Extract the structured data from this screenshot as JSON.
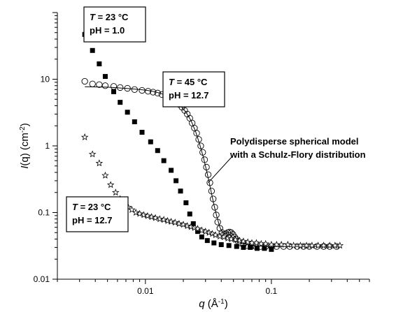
{
  "chart_data": {
    "type": "scatter",
    "scale": {
      "x": "log",
      "y": "log"
    },
    "xlim": [
      0.002,
      0.6
    ],
    "ylim": [
      0.01,
      100
    ],
    "x_ticks": [
      {
        "value": 0.01,
        "label": "0.01"
      },
      {
        "value": 0.1,
        "label": "0.1"
      }
    ],
    "y_ticks": [
      {
        "value": 0.01,
        "label": "0.01"
      },
      {
        "value": 0.1,
        "label": "0.1"
      },
      {
        "value": 1,
        "label": "1"
      },
      {
        "value": 10,
        "label": "10"
      }
    ],
    "xlabel": {
      "var": "q",
      "text": " (Å",
      "sup": "-1",
      "close": ")"
    },
    "ylabel": {
      "var": "I",
      "text": "(q) (cm",
      "sup": "-2",
      "close": ")"
    },
    "series": [
      {
        "marker": "filled-square",
        "points": [
          [
            0.0033,
            47
          ],
          [
            0.0038,
            27
          ],
          [
            0.0043,
            17
          ],
          [
            0.0048,
            11
          ],
          [
            0.0056,
            6.5
          ],
          [
            0.0063,
            4.5
          ],
          [
            0.0072,
            3.2
          ],
          [
            0.0082,
            2.3
          ],
          [
            0.0094,
            1.6
          ],
          [
            0.011,
            1.15
          ],
          [
            0.0125,
            0.85
          ],
          [
            0.014,
            0.6
          ],
          [
            0.016,
            0.43
          ],
          [
            0.0175,
            0.3
          ],
          [
            0.019,
            0.21
          ],
          [
            0.021,
            0.14
          ],
          [
            0.0225,
            0.095
          ],
          [
            0.024,
            0.068
          ],
          [
            0.026,
            0.052
          ],
          [
            0.028,
            0.043
          ],
          [
            0.031,
            0.038
          ],
          [
            0.035,
            0.035
          ],
          [
            0.04,
            0.033
          ],
          [
            0.046,
            0.032
          ],
          [
            0.053,
            0.031
          ],
          [
            0.06,
            0.03
          ],
          [
            0.068,
            0.03
          ],
          [
            0.077,
            0.029
          ],
          [
            0.088,
            0.029
          ],
          [
            0.1,
            0.028
          ]
        ]
      },
      {
        "marker": "open-circle",
        "points": [
          [
            0.0033,
            9.3
          ],
          [
            0.0038,
            8.5
          ],
          [
            0.0043,
            8.3
          ],
          [
            0.0048,
            8.0
          ],
          [
            0.0056,
            7.8
          ],
          [
            0.0063,
            7.5
          ],
          [
            0.0072,
            7.3
          ],
          [
            0.0082,
            7.0
          ],
          [
            0.0094,
            6.8
          ],
          [
            0.0105,
            6.6
          ],
          [
            0.0115,
            6.4
          ],
          [
            0.0125,
            6.2
          ],
          [
            0.0135,
            5.9
          ],
          [
            0.0145,
            5.6
          ],
          [
            0.0155,
            5.3
          ],
          [
            0.0165,
            5.0
          ],
          [
            0.0175,
            4.6
          ],
          [
            0.0185,
            4.2
          ],
          [
            0.0195,
            3.8
          ],
          [
            0.0205,
            3.4
          ],
          [
            0.0215,
            3.0
          ],
          [
            0.0225,
            2.6
          ],
          [
            0.0235,
            2.2
          ],
          [
            0.0245,
            1.85
          ],
          [
            0.0255,
            1.55
          ],
          [
            0.0265,
            1.25
          ],
          [
            0.0275,
            1.0
          ],
          [
            0.0285,
            0.8
          ],
          [
            0.0295,
            0.62
          ],
          [
            0.0305,
            0.48
          ],
          [
            0.0315,
            0.37
          ],
          [
            0.0325,
            0.28
          ],
          [
            0.0335,
            0.21
          ],
          [
            0.0345,
            0.16
          ],
          [
            0.0355,
            0.12
          ],
          [
            0.0365,
            0.092
          ],
          [
            0.0375,
            0.072
          ],
          [
            0.039,
            0.058
          ],
          [
            0.0405,
            0.05
          ],
          [
            0.042,
            0.047
          ],
          [
            0.0435,
            0.048
          ],
          [
            0.045,
            0.05
          ],
          [
            0.0465,
            0.051
          ],
          [
            0.048,
            0.05
          ],
          [
            0.0495,
            0.047
          ],
          [
            0.051,
            0.043
          ],
          [
            0.0525,
            0.04
          ],
          [
            0.0545,
            0.037
          ],
          [
            0.057,
            0.035
          ],
          [
            0.06,
            0.033
          ],
          [
            0.064,
            0.032
          ],
          [
            0.069,
            0.031
          ],
          [
            0.075,
            0.031
          ],
          [
            0.082,
            0.031
          ],
          [
            0.09,
            0.031
          ],
          [
            0.1,
            0.031
          ],
          [
            0.11,
            0.031
          ],
          [
            0.125,
            0.031
          ],
          [
            0.14,
            0.031
          ],
          [
            0.16,
            0.031
          ],
          [
            0.18,
            0.031
          ],
          [
            0.2,
            0.031
          ],
          [
            0.23,
            0.031
          ],
          [
            0.26,
            0.031
          ],
          [
            0.29,
            0.031
          ],
          [
            0.33,
            0.031
          ]
        ]
      },
      {
        "marker": "open-star",
        "points": [
          [
            0.0033,
            1.35
          ],
          [
            0.0038,
            0.75
          ],
          [
            0.0043,
            0.55
          ],
          [
            0.0048,
            0.36
          ],
          [
            0.0053,
            0.26
          ],
          [
            0.0058,
            0.2
          ],
          [
            0.0063,
            0.16
          ],
          [
            0.0068,
            0.135
          ],
          [
            0.0073,
            0.12
          ],
          [
            0.0078,
            0.11
          ],
          [
            0.0084,
            0.1
          ],
          [
            0.009,
            0.096
          ],
          [
            0.0097,
            0.092
          ],
          [
            0.0104,
            0.089
          ],
          [
            0.0112,
            0.086
          ],
          [
            0.012,
            0.083
          ],
          [
            0.013,
            0.08
          ],
          [
            0.014,
            0.078
          ],
          [
            0.015,
            0.075
          ],
          [
            0.016,
            0.073
          ],
          [
            0.0172,
            0.071
          ],
          [
            0.0185,
            0.068
          ],
          [
            0.02,
            0.066
          ],
          [
            0.0215,
            0.063
          ],
          [
            0.023,
            0.061
          ],
          [
            0.0245,
            0.059
          ],
          [
            0.026,
            0.057
          ],
          [
            0.028,
            0.054
          ],
          [
            0.03,
            0.052
          ],
          [
            0.032,
            0.05
          ],
          [
            0.034,
            0.048
          ],
          [
            0.036,
            0.046
          ],
          [
            0.039,
            0.044
          ],
          [
            0.042,
            0.043
          ],
          [
            0.045,
            0.041
          ],
          [
            0.048,
            0.04
          ],
          [
            0.052,
            0.039
          ],
          [
            0.056,
            0.038
          ],
          [
            0.06,
            0.037
          ],
          [
            0.065,
            0.036
          ],
          [
            0.07,
            0.035
          ],
          [
            0.076,
            0.035
          ],
          [
            0.083,
            0.034
          ],
          [
            0.09,
            0.034
          ],
          [
            0.1,
            0.033
          ],
          [
            0.11,
            0.033
          ],
          [
            0.12,
            0.033
          ],
          [
            0.135,
            0.033
          ],
          [
            0.15,
            0.032
          ],
          [
            0.17,
            0.032
          ],
          [
            0.19,
            0.032
          ],
          [
            0.21,
            0.032
          ],
          [
            0.235,
            0.032
          ],
          [
            0.26,
            0.032
          ],
          [
            0.29,
            0.032
          ],
          [
            0.32,
            0.032
          ],
          [
            0.35,
            0.032
          ]
        ]
      }
    ],
    "fit_line": {
      "points": [
        [
          0.0033,
          7.7
        ],
        [
          0.005,
          7.6
        ],
        [
          0.007,
          7.3
        ],
        [
          0.009,
          7.0
        ],
        [
          0.011,
          6.7
        ],
        [
          0.013,
          6.2
        ],
        [
          0.015,
          5.6
        ],
        [
          0.017,
          4.8
        ],
        [
          0.019,
          4.0
        ],
        [
          0.021,
          3.2
        ],
        [
          0.023,
          2.4
        ],
        [
          0.025,
          1.65
        ],
        [
          0.027,
          1.05
        ],
        [
          0.029,
          0.65
        ],
        [
          0.031,
          0.38
        ],
        [
          0.033,
          0.22
        ],
        [
          0.035,
          0.13
        ],
        [
          0.037,
          0.085
        ],
        [
          0.039,
          0.06
        ],
        [
          0.041,
          0.05
        ],
        [
          0.043,
          0.048
        ],
        [
          0.045,
          0.05
        ],
        [
          0.047,
          0.05
        ],
        [
          0.049,
          0.048
        ],
        [
          0.052,
          0.042
        ],
        [
          0.055,
          0.037
        ],
        [
          0.06,
          0.034
        ],
        [
          0.07,
          0.032
        ],
        [
          0.09,
          0.031
        ],
        [
          0.12,
          0.031
        ],
        [
          0.2,
          0.031
        ],
        [
          0.35,
          0.031
        ]
      ]
    },
    "annotations": [
      {
        "id": "box-ph1",
        "lines": [
          {
            "var": "T",
            "text": " = 23 °C"
          },
          {
            "text": "pH = 1.0"
          }
        ]
      },
      {
        "id": "box-45",
        "lines": [
          {
            "var": "T",
            "text": " = 45 °C"
          },
          {
            "text": "pH = 12.7"
          }
        ]
      },
      {
        "id": "box-ph127",
        "lines": [
          {
            "var": "T",
            "text": " = 23 °C"
          },
          {
            "text": "pH = 12.7"
          }
        ]
      },
      {
        "id": "model-note",
        "lines": [
          {
            "text": "Polydisperse spherical model"
          },
          {
            "text": "with a Schulz-Flory distribution"
          }
        ]
      }
    ],
    "grid": false
  }
}
